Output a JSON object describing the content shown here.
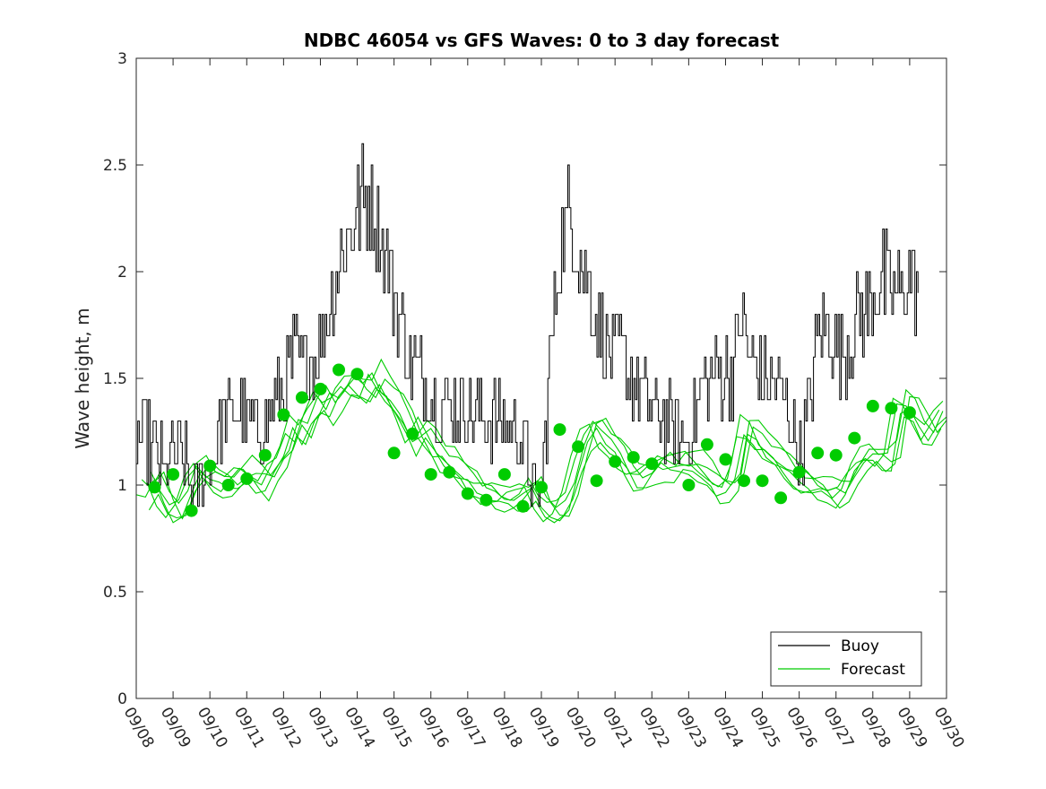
{
  "chart_data": {
    "type": "line",
    "title": "NDBC 46054 vs GFS Waves: 0 to 3 day forecast",
    "xlabel": "",
    "ylabel": "Wave height, m",
    "xlim": [
      0,
      22
    ],
    "ylim": [
      0,
      3
    ],
    "yticks": [
      0,
      0.5,
      1,
      1.5,
      2,
      2.5,
      3
    ],
    "ytick_labels": [
      "0",
      "0.5",
      "1",
      "1.5",
      "2",
      "2.5",
      "3"
    ],
    "xtick_labels": [
      "09/08",
      "09/09",
      "09/10",
      "09/11",
      "09/12",
      "09/13",
      "09/14",
      "09/15",
      "09/16",
      "09/17",
      "09/18",
      "09/19",
      "09/20",
      "09/21",
      "09/22",
      "09/23",
      "09/24",
      "09/25",
      "09/26",
      "09/27",
      "09/28",
      "09/29",
      "09/30"
    ],
    "legend": {
      "placement": "bottom-right",
      "entries": [
        {
          "name": "Buoy",
          "color": "#000000"
        },
        {
          "name": "Forecast",
          "color": "#00cc00"
        }
      ]
    },
    "series": [
      {
        "name": "Buoy",
        "color": "#000000",
        "style": "stepped-line",
        "x_start": 0,
        "x_step": 0.0417,
        "anchors": [
          [
            0,
            1.25
          ],
          [
            0.5,
            1.15
          ],
          [
            0.8,
            1.05
          ],
          [
            1.0,
            1.2
          ],
          [
            1.3,
            1.1
          ],
          [
            1.6,
            0.95
          ],
          [
            2.0,
            1.1
          ],
          [
            2.3,
            1.3
          ],
          [
            2.8,
            1.35
          ],
          [
            3.2,
            1.25
          ],
          [
            3.5,
            1.3
          ],
          [
            4.0,
            1.45
          ],
          [
            4.3,
            1.6
          ],
          [
            4.6,
            1.55
          ],
          [
            5.0,
            1.65
          ],
          [
            5.3,
            1.9
          ],
          [
            5.6,
            2.1
          ],
          [
            6.0,
            2.3
          ],
          [
            6.3,
            2.35
          ],
          [
            6.6,
            2.2
          ],
          [
            7.0,
            1.9
          ],
          [
            7.4,
            1.6
          ],
          [
            7.8,
            1.5
          ],
          [
            8.3,
            1.4
          ],
          [
            8.7,
            1.35
          ],
          [
            9.2,
            1.35
          ],
          [
            9.6,
            1.3
          ],
          [
            10.0,
            1.3
          ],
          [
            10.4,
            1.25
          ],
          [
            10.7,
            1.05
          ],
          [
            10.85,
            0.9
          ],
          [
            11.0,
            1.0
          ],
          [
            11.2,
            1.5
          ],
          [
            11.5,
            2.1
          ],
          [
            11.8,
            2.3
          ],
          [
            12.0,
            2.1
          ],
          [
            12.4,
            1.85
          ],
          [
            12.8,
            1.65
          ],
          [
            13.2,
            1.6
          ],
          [
            13.6,
            1.45
          ],
          [
            14.0,
            1.35
          ],
          [
            14.4,
            1.3
          ],
          [
            14.8,
            1.2
          ],
          [
            15.0,
            1.2
          ],
          [
            15.3,
            1.45
          ],
          [
            15.8,
            1.5
          ],
          [
            16.2,
            1.55
          ],
          [
            16.4,
            1.8
          ],
          [
            16.6,
            1.6
          ],
          [
            17.0,
            1.5
          ],
          [
            17.4,
            1.45
          ],
          [
            17.8,
            1.3
          ],
          [
            18.0,
            1.1
          ],
          [
            18.2,
            1.3
          ],
          [
            18.5,
            1.7
          ],
          [
            18.8,
            1.75
          ],
          [
            19.2,
            1.6
          ],
          [
            19.5,
            1.75
          ],
          [
            19.9,
            1.85
          ],
          [
            20.3,
            1.95
          ],
          [
            20.7,
            1.9
          ],
          [
            21.0,
            1.95
          ],
          [
            21.25,
            1.95
          ]
        ]
      },
      {
        "name": "Forecast",
        "color": "#00cc00",
        "style": "ensemble-lines",
        "x_start": 0,
        "x_step": 0.25,
        "base": [
          0.98,
          0.96,
          1.03,
          0.92,
          0.86,
          0.9,
          1.02,
          1.08,
          1.03,
          1.01,
          1.0,
          1.03,
          1.06,
          1.02,
          1.0,
          1.08,
          1.15,
          1.28,
          1.22,
          1.33,
          1.4,
          1.35,
          1.42,
          1.48,
          1.45,
          1.43,
          1.5,
          1.43,
          1.38,
          1.3,
          1.2,
          1.26,
          1.2,
          1.12,
          1.1,
          1.06,
          1.02,
          0.97,
          0.96,
          0.94,
          0.93,
          0.93,
          0.95,
          1.0,
          0.9,
          0.86,
          0.87,
          0.95,
          1.1,
          1.24,
          1.27,
          1.2,
          1.17,
          1.1,
          1.03,
          1.03,
          1.08,
          1.1,
          1.08,
          1.1,
          1.1,
          1.08,
          1.04,
          0.99,
          0.98,
          1.04,
          1.26,
          1.24,
          1.17,
          1.15,
          1.11,
          1.06,
          1.02,
          1.0,
          0.99,
          0.97,
          0.94,
          0.98,
          1.07,
          1.13,
          1.14,
          1.1,
          1.13,
          1.38,
          1.37,
          1.28,
          1.23,
          1.3,
          1.36,
          1.38,
          1.37,
          1.36,
          1.35,
          1.33,
          1.3,
          1.28,
          1.25,
          1.23,
          1.21
        ],
        "markers": [
          [
            0.5,
            0.99
          ],
          [
            1.0,
            1.05
          ],
          [
            1.5,
            0.88
          ],
          [
            2.0,
            1.09
          ],
          [
            2.5,
            1.0
          ],
          [
            3.0,
            1.03
          ],
          [
            3.5,
            1.14
          ],
          [
            4.0,
            1.33
          ],
          [
            4.5,
            1.41
          ],
          [
            5.0,
            1.45
          ],
          [
            5.5,
            1.54
          ],
          [
            6.0,
            1.52
          ],
          [
            7.0,
            1.15
          ],
          [
            7.5,
            1.24
          ],
          [
            8.0,
            1.05
          ],
          [
            8.5,
            1.06
          ],
          [
            9.0,
            0.96
          ],
          [
            9.5,
            0.93
          ],
          [
            10.0,
            1.05
          ],
          [
            10.5,
            0.9
          ],
          [
            11.0,
            0.99
          ],
          [
            11.5,
            1.26
          ],
          [
            12.0,
            1.18
          ],
          [
            12.5,
            1.02
          ],
          [
            13.0,
            1.11
          ],
          [
            13.5,
            1.13
          ],
          [
            14.0,
            1.1
          ],
          [
            15.0,
            1.0
          ],
          [
            15.5,
            1.19
          ],
          [
            16.0,
            1.12
          ],
          [
            16.5,
            1.02
          ],
          [
            17.0,
            1.02
          ],
          [
            17.5,
            0.94
          ],
          [
            18.0,
            1.06
          ],
          [
            18.5,
            1.15
          ],
          [
            19.0,
            1.14
          ],
          [
            19.5,
            1.22
          ],
          [
            20.0,
            1.37
          ],
          [
            20.5,
            1.36
          ],
          [
            21.0,
            1.34
          ]
        ]
      }
    ]
  }
}
